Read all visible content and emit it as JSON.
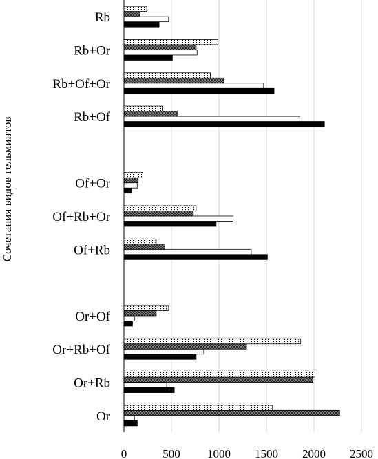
{
  "chart_data": {
    "type": "bar",
    "orientation": "horizontal",
    "title": "",
    "xlabel": "",
    "ylabel": "Сочетания видов гельминтов",
    "xlim": [
      0,
      2500
    ],
    "xticks": [
      0,
      500,
      1000,
      1500,
      2000,
      2500
    ],
    "grid": "vertical",
    "legend": "none",
    "series_colors": [
      "#000000",
      "#ffffff",
      "#7a7a7a",
      "#ffffff"
    ],
    "series_patterns": [
      "solid",
      "open",
      "crosshatch",
      "dotted"
    ],
    "groups": [
      {
        "label": "Rb",
        "values": [
          370,
          470,
          170,
          240
        ]
      },
      {
        "label": "Rb+Or",
        "values": [
          510,
          770,
          760,
          990
        ]
      },
      {
        "label": "Rb+Of+Or",
        "values": [
          1580,
          1470,
          1050,
          910
        ]
      },
      {
        "label": "Rb+Of",
        "values": [
          2110,
          1850,
          560,
          410
        ]
      },
      {
        "label": "",
        "values": []
      },
      {
        "label": "Of+Or",
        "values": [
          80,
          140,
          150,
          200
        ]
      },
      {
        "label": "Of+Rb+Or",
        "values": [
          970,
          1150,
          730,
          760
        ]
      },
      {
        "label": "Of+Rb",
        "values": [
          1510,
          1340,
          430,
          340
        ]
      },
      {
        "label": "",
        "values": []
      },
      {
        "label": "Or+Of",
        "values": [
          90,
          110,
          340,
          470
        ]
      },
      {
        "label": "Or+Rb+Of",
        "values": [
          760,
          840,
          1290,
          1860
        ]
      },
      {
        "label": "Or+Rb",
        "values": [
          530,
          450,
          1990,
          2010
        ]
      },
      {
        "label": "Or",
        "values": [
          140,
          110,
          2270,
          1560
        ]
      }
    ]
  }
}
